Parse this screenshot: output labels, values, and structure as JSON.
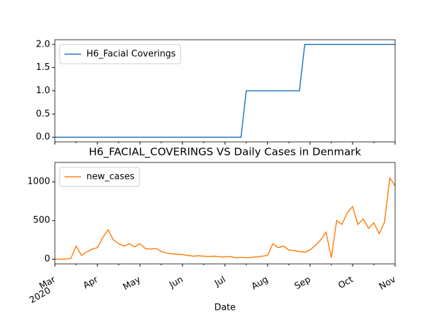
{
  "chart_data": [
    {
      "type": "line",
      "legend": "upper left",
      "categories": [
        "Mar",
        null,
        null,
        null,
        null,
        null,
        null,
        null,
        "Apr",
        null,
        null,
        null,
        null,
        null,
        null,
        null,
        "May",
        null,
        null,
        null,
        null,
        null,
        null,
        null,
        "Jun",
        null,
        null,
        null,
        null,
        null,
        null,
        null,
        "Jul",
        null,
        null,
        null,
        null,
        null,
        null,
        null,
        "Aug",
        null,
        null,
        null,
        null,
        null,
        null,
        null,
        "Sep",
        null,
        null,
        null,
        null,
        null,
        null,
        null,
        "Oct",
        null,
        null,
        null,
        null,
        null,
        null,
        null,
        "Nov"
      ],
      "series": [
        {
          "name": "H6_Facial Coverings",
          "color": "#1f77b4",
          "values": [
            0,
            0,
            0,
            0,
            0,
            0,
            0,
            0,
            0,
            0,
            0,
            0,
            0,
            0,
            0,
            0,
            0,
            0,
            0,
            0,
            0,
            0,
            0,
            0,
            0,
            0,
            0,
            0,
            0,
            0,
            0,
            0,
            0,
            0,
            0,
            0,
            1,
            1,
            1,
            1,
            1,
            1,
            1,
            1,
            1,
            1,
            1,
            2,
            2,
            2,
            2,
            2,
            2,
            2,
            2,
            2,
            2,
            2,
            2,
            2,
            2,
            2,
            2,
            2,
            2
          ]
        }
      ],
      "ylim": [
        -0.1,
        2.1
      ],
      "yticks": [
        {
          "value": 0,
          "label": "0.0"
        },
        {
          "value": 0.5,
          "label": "0.5"
        },
        {
          "value": 1,
          "label": "1.0"
        },
        {
          "value": 1.5,
          "label": "1.5"
        },
        {
          "value": 2,
          "label": "2.0"
        }
      ]
    },
    {
      "type": "line",
      "title": "H6_FACIAL_COVERINGS VS Daily Cases in Denmark",
      "xlabel": "Date",
      "year_label": "2020",
      "legend": "upper left",
      "categories": [
        "Mar",
        null,
        null,
        null,
        null,
        null,
        null,
        null,
        "Apr",
        null,
        null,
        null,
        null,
        null,
        null,
        null,
        "May",
        null,
        null,
        null,
        null,
        null,
        null,
        null,
        "Jun",
        null,
        null,
        null,
        null,
        null,
        null,
        null,
        "Jul",
        null,
        null,
        null,
        null,
        null,
        null,
        null,
        "Aug",
        null,
        null,
        null,
        null,
        null,
        null,
        null,
        "Sep",
        null,
        null,
        null,
        null,
        null,
        null,
        null,
        "Oct",
        null,
        null,
        null,
        null,
        null,
        null,
        null,
        "Nov"
      ],
      "series": [
        {
          "name": "new_cases",
          "color": "#ff7f0e",
          "values": [
            0,
            0,
            2,
            10,
            170,
            50,
            95,
            130,
            150,
            280,
            380,
            250,
            200,
            170,
            200,
            160,
            200,
            140,
            130,
            140,
            100,
            80,
            70,
            60,
            60,
            50,
            40,
            45,
            40,
            35,
            40,
            30,
            30,
            35,
            20,
            25,
            20,
            25,
            30,
            40,
            50,
            200,
            150,
            170,
            120,
            110,
            100,
            90,
            120,
            180,
            250,
            350,
            20,
            500,
            450,
            600,
            680,
            450,
            520,
            400,
            470,
            330,
            480,
            1050,
            950
          ]
        }
      ],
      "ylim": [
        -60,
        1250
      ],
      "yticks": [
        0,
        500,
        1000
      ]
    }
  ]
}
